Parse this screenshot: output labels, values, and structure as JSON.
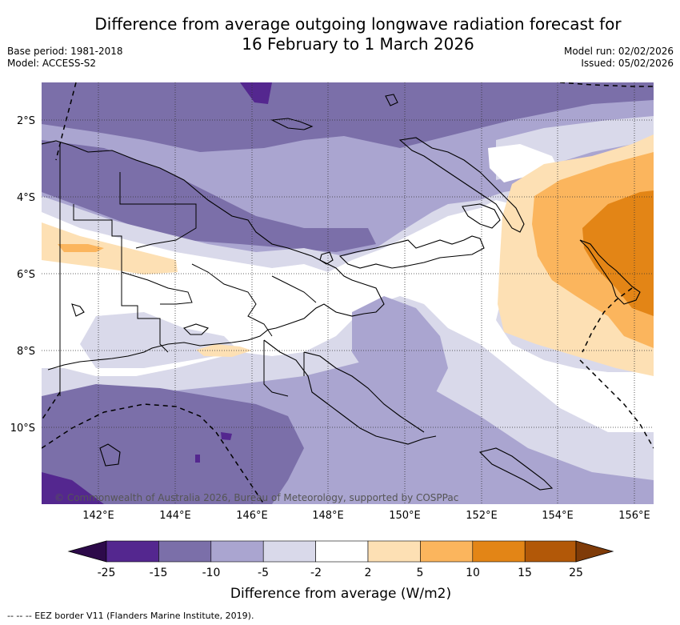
{
  "title_line1": "Difference from average outgoing longwave radiation forecast for",
  "title_line2": "16 February to 1 March 2026",
  "base_period": "Base period: 1981-2018",
  "model": "Model: ACCESS-S2",
  "model_run": "Model run: 02/02/2026",
  "issued": "Issued: 05/02/2026",
  "lat_labels": [
    "2°S",
    "4°S",
    "6°S",
    "8°S",
    "10°S"
  ],
  "lon_labels": [
    "142°E",
    "144°E",
    "146°E",
    "148°E",
    "150°E",
    "152°E",
    "154°E",
    "156°E"
  ],
  "copyright": "© Commonwealth of Australia 2026, Bureau of Meteorology, supported by COSPPac",
  "colorbar": {
    "title": "Difference from average (W/m2)",
    "tick_labels": [
      "-25",
      "-15",
      "-10",
      "-5",
      "-2",
      "2",
      "5",
      "10",
      "15",
      "25"
    ],
    "colors": {
      "below_min": "#2d0a4a",
      "c1": "#54278f",
      "c2": "#7b6fa9",
      "c3": "#aaa5d0",
      "c4": "#d9d9ea",
      "c5": "#ffffff",
      "c6": "#fde0b4",
      "c7": "#fbb55d",
      "c8": "#e38516",
      "c9": "#b25808",
      "above_max": "#7f3b08"
    }
  },
  "footer": "--  --  -- EEZ border V11 (Flanders Marine Institute, 2019)."
}
